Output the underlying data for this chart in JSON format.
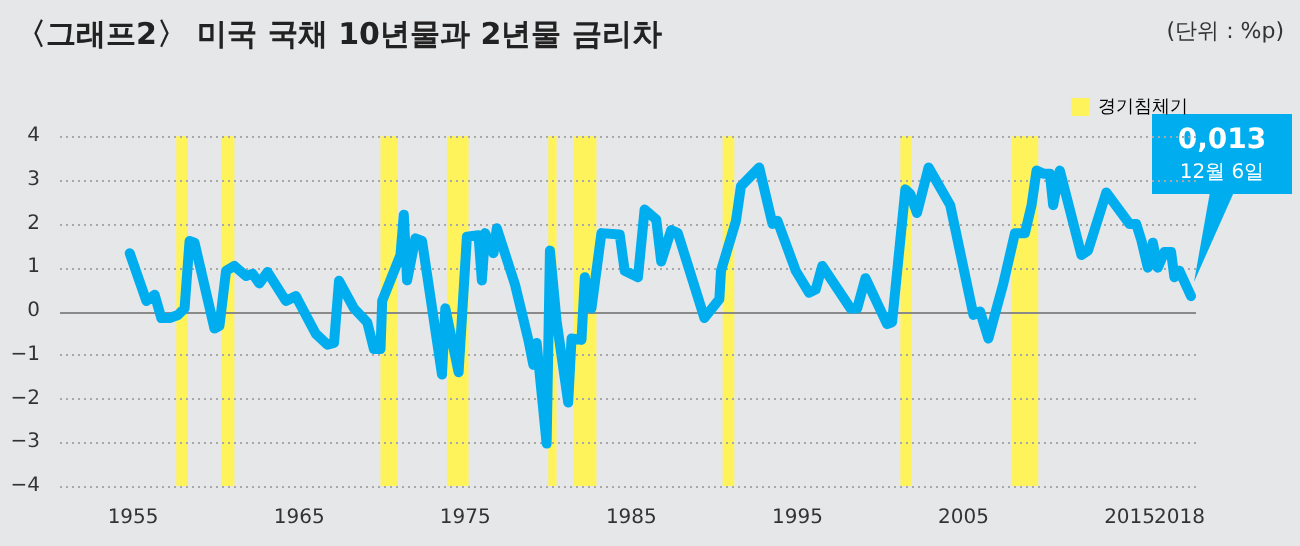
{
  "chart_data": {
    "type": "line",
    "title": "〈그래프2〉 미국 국채 10년물과 2년물 금리차",
    "ylabel": "(단위 : %p)",
    "x": [
      1954.8,
      1955.8,
      1956.3,
      1956.7,
      1957.2,
      1957.7,
      1958.1,
      1958.4,
      1958.7,
      1959.9,
      1960.2,
      1960.6,
      1961.1,
      1961.8,
      1962.2,
      1962.6,
      1963.1,
      1964.2,
      1964.8,
      1966.0,
      1966.7,
      1967.1,
      1967.4,
      1968.3,
      1969.1,
      1969.5,
      1969.9,
      1970.0,
      1971.1,
      1971.3,
      1971.5,
      1972.0,
      1972.4,
      1973.6,
      1973.8,
      1974.6,
      1975.1,
      1975.8,
      1976.0,
      1976.2,
      1976.7,
      1976.9,
      1978.0,
      1978.8,
      1979.1,
      1979.3,
      1979.9,
      1980.1,
      1980.5,
      1981.2,
      1981.4,
      1982.0,
      1982.2,
      1982.6,
      1983.2,
      1984.3,
      1984.6,
      1985.4,
      1985.8,
      1986.5,
      1986.8,
      1987.4,
      1987.8,
      1989.4,
      1990.3,
      1990.4,
      1991.3,
      1991.6,
      1992.7,
      1993.5,
      1993.8,
      1994.9,
      1995.7,
      1996.1,
      1996.5,
      1998.2,
      1998.6,
      1999.1,
      2000.4,
      2000.7,
      2001.5,
      2001.8,
      2002.2,
      2002.9,
      2004.2,
      2005.6,
      2006.0,
      2006.5,
      2007.4,
      2008.1,
      2008.7,
      2009.1,
      2009.4,
      2009.8,
      2010.2,
      2010.4,
      2010.8,
      2012.1,
      2012.5,
      2013.6,
      2015.0,
      2015.4,
      2015.7,
      2016.1,
      2016.4,
      2016.7,
      2017.1,
      2017.5,
      2017.7,
      2018.0,
      2018.7
    ],
    "series": [
      {
        "color": "#00aeef",
        "values": [
          1.32,
          0.23,
          0.37,
          -0.16,
          -0.16,
          -0.09,
          0.06,
          1.6,
          1.56,
          -0.4,
          -0.34,
          0.92,
          1.03,
          0.8,
          0.85,
          0.63,
          0.89,
          0.23,
          0.34,
          -0.52,
          -0.77,
          -0.73,
          0.69,
          0.06,
          -0.26,
          -0.87,
          -0.87,
          0.23,
          1.28,
          2.2,
          0.7,
          1.66,
          1.6,
          -1.45,
          0.06,
          -1.4,
          1.7,
          1.73,
          0.7,
          1.78,
          1.32,
          1.89,
          0.6,
          -0.66,
          -1.23,
          -0.73,
          -3.03,
          1.38,
          -0.23,
          -2.09,
          -0.63,
          -0.66,
          0.77,
          0.06,
          1.78,
          1.75,
          0.92,
          0.77,
          2.32,
          2.09,
          1.13,
          1.85,
          1.78,
          -0.16,
          0.27,
          0.92,
          2.06,
          2.85,
          3.28,
          1.99,
          2.06,
          0.92,
          0.42,
          0.49,
          1.03,
          0.06,
          0.06,
          0.75,
          -0.3,
          -0.26,
          2.78,
          2.67,
          2.24,
          3.28,
          2.42,
          -0.09,
          -0.01,
          -0.63,
          0.63,
          1.78,
          1.78,
          2.42,
          3.21,
          3.14,
          3.14,
          2.42,
          3.21,
          1.28,
          1.38,
          2.71,
          1.99,
          1.99,
          1.63,
          0.99,
          1.56,
          0.99,
          1.35,
          1.35,
          0.77,
          0.92,
          0.34
        ]
      }
    ],
    "xlim": [
      1950.6,
      2019
    ],
    "xticks": [
      1955,
      1965,
      1975,
      1985,
      1995,
      2005,
      2015,
      2018
    ],
    "ylim": [
      -4,
      4
    ],
    "yticks": [
      -4,
      -3,
      -2,
      -1,
      0,
      1,
      2,
      3,
      4
    ],
    "grid": "y",
    "bands": [
      {
        "axis": "x",
        "from": 1957.6,
        "to": 1958.3,
        "label": "경기침체기",
        "color": "#fff35c"
      },
      {
        "axis": "x",
        "from": 1960.3,
        "to": 1961.1,
        "color": "#fff35c"
      },
      {
        "axis": "x",
        "from": 1969.9,
        "to": 1970.9,
        "color": "#fff35c"
      },
      {
        "axis": "x",
        "from": 1973.9,
        "to": 1975.2,
        "color": "#fff35c"
      },
      {
        "axis": "x",
        "from": 1980.0,
        "to": 1980.5,
        "color": "#fff35c"
      },
      {
        "axis": "x",
        "from": 1981.5,
        "to": 1982.9,
        "color": "#fff35c"
      },
      {
        "axis": "x",
        "from": 1990.5,
        "to": 1991.2,
        "color": "#fff35c"
      },
      {
        "axis": "x",
        "from": 2001.2,
        "to": 2001.9,
        "color": "#fff35c"
      },
      {
        "axis": "x",
        "from": 2007.9,
        "to": 2009.5,
        "color": "#fff35c"
      }
    ],
    "annotations": [
      "0,013",
      "12월 6일"
    ],
    "legend": "top right",
    "marker": "none",
    "line_style": "solid"
  }
}
